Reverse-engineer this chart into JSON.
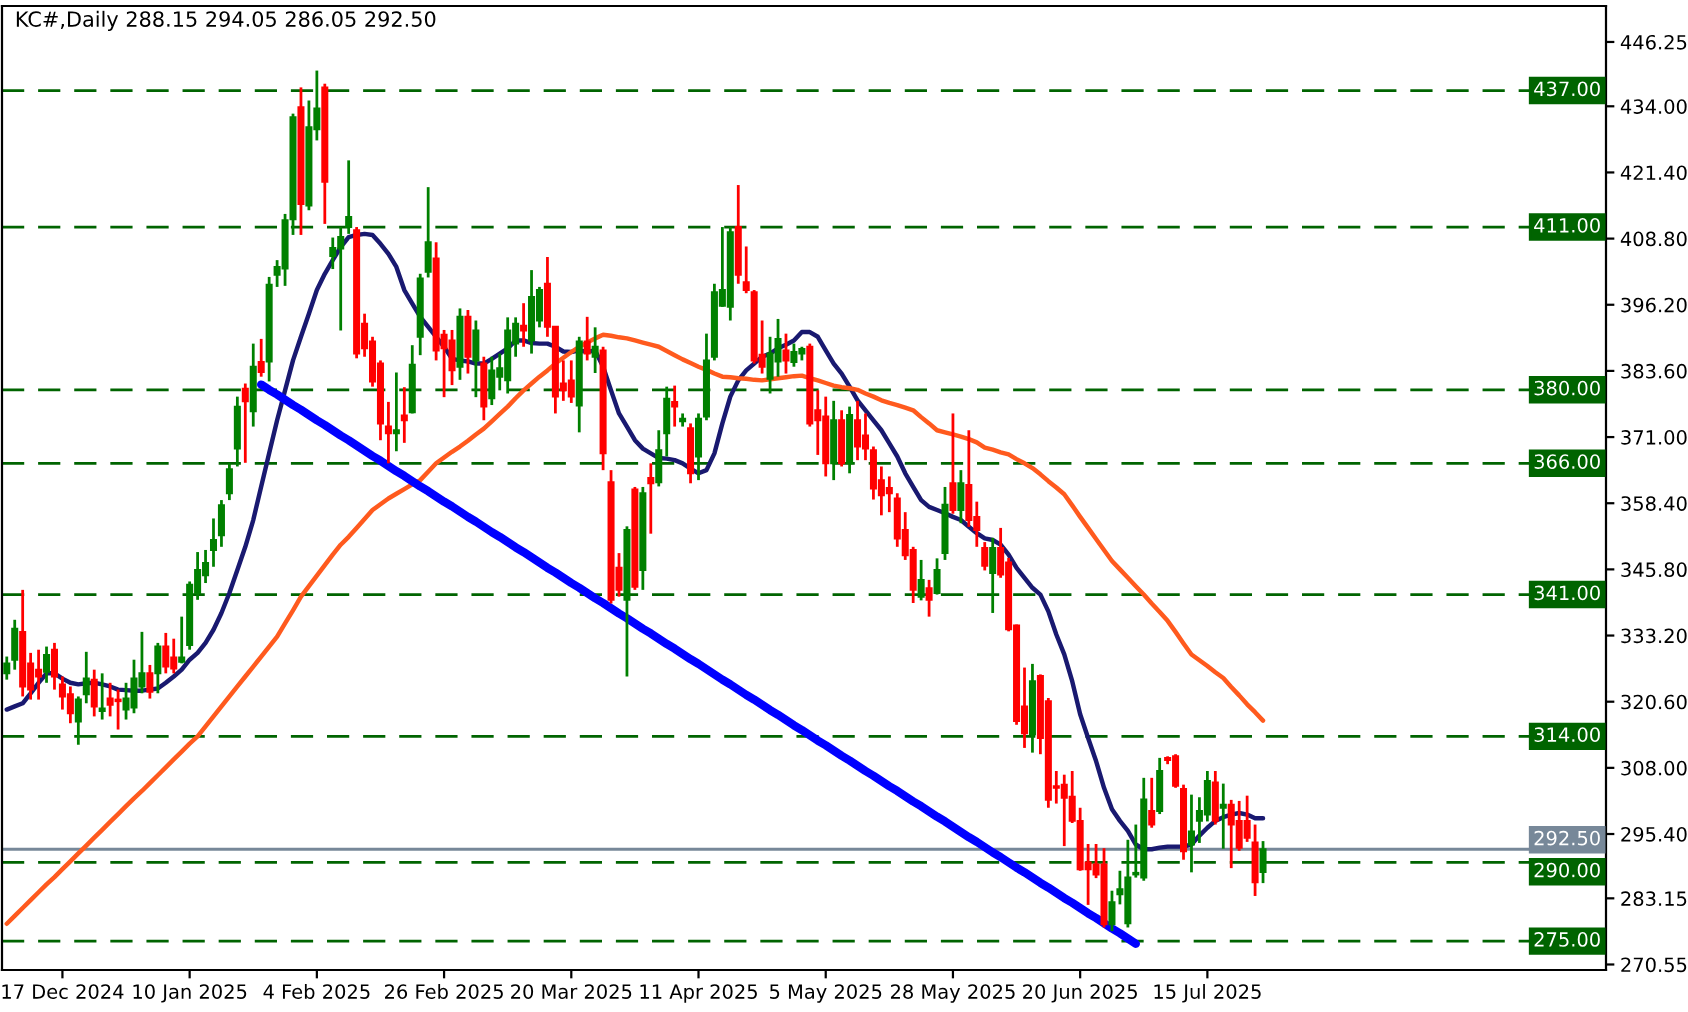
{
  "chart_data": {
    "type": "candlestick",
    "title": "KC#,Daily 288.15 294.05 286.05 292.50",
    "categories": [
      null,
      null,
      null,
      null,
      null,
      null,
      null,
      "17 Dec 2024",
      null,
      null,
      null,
      null,
      null,
      null,
      null,
      null,
      null,
      null,
      null,
      null,
      null,
      null,
      null,
      "10 Jan 2025",
      null,
      null,
      null,
      null,
      null,
      null,
      null,
      null,
      null,
      null,
      null,
      null,
      null,
      null,
      null,
      "4 Feb 2025",
      null,
      null,
      null,
      null,
      null,
      null,
      null,
      null,
      null,
      null,
      null,
      null,
      null,
      null,
      null,
      "26 Feb 2025",
      null,
      null,
      null,
      null,
      null,
      null,
      null,
      null,
      null,
      null,
      null,
      null,
      null,
      null,
      null,
      "20 Mar 2025",
      null,
      null,
      null,
      null,
      null,
      null,
      null,
      null,
      null,
      null,
      null,
      null,
      null,
      null,
      null,
      "11 Apr 2025",
      null,
      null,
      null,
      null,
      null,
      null,
      null,
      null,
      null,
      null,
      null,
      null,
      null,
      null,
      null,
      "5 May 2025",
      null,
      null,
      null,
      null,
      null,
      null,
      null,
      null,
      null,
      null,
      null,
      null,
      null,
      null,
      null,
      "28 May 2025",
      null,
      null,
      null,
      null,
      null,
      null,
      null,
      null,
      null,
      null,
      null,
      null,
      null,
      null,
      null,
      "20 Jun 2025",
      null,
      null,
      null,
      null,
      null,
      null,
      null,
      null,
      null,
      null,
      null,
      null,
      null,
      null,
      null,
      "15 Jul 2025",
      null,
      null,
      null,
      null,
      null,
      null,
      null
    ],
    "ohlc": [
      [
        326.0,
        329.2,
        324.8,
        327.9
      ],
      [
        328.6,
        336.2,
        326.7,
        334.5
      ],
      [
        333.9,
        341.9,
        321.6,
        323.5
      ],
      [
        327.9,
        329.9,
        321.0,
        322.9
      ],
      [
        326.7,
        330.5,
        321.0,
        325.4
      ],
      [
        326.3,
        331.1,
        324.2,
        329.5
      ],
      [
        330.5,
        331.8,
        322.9,
        325.4
      ],
      [
        323.9,
        325.4,
        319.1,
        321.6
      ],
      [
        322.0,
        323.5,
        316.5,
        318.4
      ],
      [
        316.8,
        321.6,
        312.4,
        321.0
      ],
      [
        322.0,
        330.1,
        320.3,
        325.0
      ],
      [
        324.8,
        326.7,
        317.8,
        319.7
      ],
      [
        318.8,
        326.0,
        317.2,
        319.3
      ],
      [
        321.2,
        324.2,
        317.8,
        320.0
      ],
      [
        321.0,
        322.9,
        315.3,
        320.7
      ],
      [
        319.1,
        324.2,
        317.2,
        321.2
      ],
      [
        319.5,
        328.6,
        318.4,
        325.0
      ],
      [
        323.5,
        333.9,
        322.2,
        326.0
      ],
      [
        326.0,
        327.6,
        321.2,
        322.5
      ],
      [
        326.0,
        331.8,
        322.2,
        331.1
      ],
      [
        331.1,
        333.7,
        326.0,
        327.3
      ],
      [
        329.0,
        332.6,
        326.0,
        326.9
      ],
      [
        328.2,
        336.8,
        327.9,
        329.0
      ],
      [
        331.4,
        343.5,
        330.5,
        342.9
      ],
      [
        341.3,
        349.1,
        340.0,
        345.7
      ],
      [
        344.7,
        349.5,
        343.2,
        347.0
      ],
      [
        349.5,
        355.5,
        346.3,
        351.4
      ],
      [
        352.3,
        359.0,
        350.1,
        358.0
      ],
      [
        360.3,
        366.0,
        359.0,
        364.9
      ],
      [
        368.8,
        378.7,
        365.4,
        376.8
      ],
      [
        380.2,
        381.2,
        366.1,
        377.8
      ],
      [
        375.9,
        388.8,
        373.0,
        384.4
      ],
      [
        385.3,
        389.7,
        382.5,
        383.4
      ],
      [
        385.4,
        401.5,
        381.6,
        400.0
      ],
      [
        401.9,
        404.7,
        399.6,
        403.4
      ],
      [
        403.1,
        413.5,
        399.8,
        412.3
      ],
      [
        412.5,
        432.6,
        409.5,
        431.9
      ],
      [
        433.8,
        437.6,
        409.5,
        415.4
      ],
      [
        415.1,
        435.1,
        414.2,
        430.0
      ],
      [
        429.6,
        440.8,
        427.5,
        433.6
      ],
      [
        437.6,
        438.3,
        411.6,
        419.6
      ],
      [
        405.5,
        409.0,
        403.0,
        407.0
      ],
      [
        406.9,
        411.0,
        391.3,
        409.1
      ],
      [
        411.0,
        423.7,
        409.7,
        412.9
      ],
      [
        410.4,
        411.0,
        386.0,
        386.9
      ],
      [
        392.6,
        394.5,
        386.3,
        387.9
      ],
      [
        389.2,
        390.1,
        380.6,
        381.6
      ],
      [
        385.0,
        385.6,
        370.4,
        373.6
      ],
      [
        373.0,
        377.7,
        366.0,
        371.7
      ],
      [
        371.7,
        383.3,
        368.3,
        372.3
      ],
      [
        375.1,
        380.5,
        369.9,
        374.2
      ],
      [
        375.7,
        388.5,
        375.5,
        384.8
      ],
      [
        390.1,
        402.1,
        386.6,
        401.2
      ],
      [
        402.5,
        418.6,
        401.4,
        408.1
      ],
      [
        405.0,
        408.1,
        385.6,
        387.5
      ],
      [
        390.5,
        391.4,
        378.6,
        387.9
      ],
      [
        389.4,
        391.4,
        380.9,
        383.7
      ],
      [
        384.4,
        395.5,
        381.9,
        393.9
      ],
      [
        393.9,
        395.2,
        383.1,
        386.3
      ],
      [
        385.6,
        393.2,
        378.6,
        391.3
      ],
      [
        385.0,
        386.3,
        374.2,
        376.8
      ],
      [
        378.4,
        386.3,
        377.1,
        383.7
      ],
      [
        382.5,
        386.9,
        379.9,
        384.1
      ],
      [
        381.8,
        393.8,
        379.3,
        391.3
      ],
      [
        388.8,
        393.8,
        386.3,
        392.6
      ],
      [
        392.2,
        396.5,
        388.2,
        391.3
      ],
      [
        389.4,
        402.8,
        386.9,
        397.7
      ],
      [
        393.2,
        399.6,
        391.9,
        399.0
      ],
      [
        400.2,
        405.3,
        390.1,
        392.0
      ],
      [
        392.0,
        392.0,
        375.5,
        378.7
      ],
      [
        381.2,
        385.6,
        377.9,
        379.9
      ],
      [
        381.8,
        385.6,
        377.5,
        378.7
      ],
      [
        377.0,
        390.1,
        371.9,
        389.2
      ],
      [
        389.2,
        393.9,
        385.6,
        386.9
      ],
      [
        386.3,
        391.9,
        383.2,
        388.2
      ],
      [
        387.5,
        388.2,
        364.7,
        367.9
      ],
      [
        362.4,
        364.7,
        339.3,
        340.0
      ],
      [
        346.1,
        348.9,
        340.6,
        341.9
      ],
      [
        340.0,
        354.0,
        325.4,
        353.3
      ],
      [
        361.0,
        361.5,
        341.9,
        342.5
      ],
      [
        345.7,
        361.5,
        341.9,
        360.3
      ],
      [
        363.2,
        366.0,
        352.6,
        362.2
      ],
      [
        362.4,
        372.3,
        361.6,
        368.5
      ],
      [
        371.7,
        380.6,
        367.3,
        378.3
      ],
      [
        377.7,
        380.8,
        373.0,
        376.8
      ],
      [
        374.0,
        375.5,
        373.0,
        374.5
      ],
      [
        372.7,
        373.6,
        362.2,
        364.1
      ],
      [
        367.3,
        375.5,
        362.8,
        374.5
      ],
      [
        374.9,
        390.7,
        374.2,
        385.6
      ],
      [
        386.3,
        400.2,
        385.6,
        398.6
      ],
      [
        396.0,
        411.0,
        395.8,
        399.0
      ],
      [
        395.8,
        411.0,
        393.2,
        410.0
      ],
      [
        411.0,
        419.0,
        400.2,
        401.9
      ],
      [
        400.5,
        407.3,
        398.4,
        399.0
      ],
      [
        398.6,
        399.0,
        385.0,
        385.6
      ],
      [
        386.7,
        393.2,
        383.1,
        384.4
      ],
      [
        382.1,
        390.1,
        379.3,
        386.9
      ],
      [
        385.4,
        393.5,
        382.5,
        389.7
      ],
      [
        387.5,
        390.7,
        383.1,
        385.6
      ],
      [
        385.3,
        388.8,
        384.4,
        387.2
      ],
      [
        386.9,
        388.2,
        385.6,
        387.8
      ],
      [
        388.2,
        388.8,
        373.0,
        373.6
      ],
      [
        376.1,
        379.9,
        367.6,
        374.2
      ],
      [
        374.9,
        378.7,
        363.5,
        366.0
      ],
      [
        366.0,
        377.9,
        362.8,
        374.2
      ],
      [
        374.2,
        376.1,
        365.4,
        366.0
      ],
      [
        366.0,
        376.8,
        364.1,
        375.2
      ],
      [
        374.2,
        377.9,
        366.6,
        369.2
      ],
      [
        371.3,
        375.5,
        366.6,
        368.8
      ],
      [
        368.5,
        369.2,
        359.1,
        361.2
      ],
      [
        362.8,
        365.4,
        356.1,
        359.9
      ],
      [
        361.3,
        363.5,
        356.7,
        360.3
      ],
      [
        359.3,
        360.3,
        350.1,
        351.7
      ],
      [
        353.3,
        356.7,
        347.6,
        348.5
      ],
      [
        349.5,
        350.1,
        339.4,
        341.9
      ],
      [
        340.6,
        347.6,
        339.9,
        343.8
      ],
      [
        342.2,
        343.8,
        336.8,
        340.0
      ],
      [
        341.3,
        347.9,
        341.0,
        345.7
      ],
      [
        348.9,
        361.5,
        347.6,
        358.1
      ],
      [
        362.2,
        375.5,
        356.4,
        357.1
      ],
      [
        357.1,
        364.7,
        354.6,
        362.2
      ],
      [
        361.9,
        372.3,
        353.9,
        355.2
      ],
      [
        355.8,
        358.7,
        350.1,
        353.3
      ],
      [
        349.9,
        351.0,
        345.6,
        346.5
      ],
      [
        345.1,
        351.8,
        337.5,
        349.9
      ],
      [
        349.9,
        353.7,
        344.2,
        344.8
      ],
      [
        347.1,
        348.0,
        334.0,
        334.4
      ],
      [
        335.1,
        335.3,
        316.2,
        316.9
      ],
      [
        319.7,
        327.1,
        311.8,
        314.6
      ],
      [
        314.4,
        327.8,
        310.9,
        324.5
      ],
      [
        325.5,
        325.8,
        310.6,
        313.7
      ],
      [
        320.7,
        321.3,
        300.4,
        301.9
      ],
      [
        304.5,
        307.4,
        301.2,
        304.2
      ],
      [
        304.8,
        306.7,
        293.1,
        302.3
      ],
      [
        302.5,
        307.4,
        297.5,
        297.9
      ],
      [
        297.9,
        300.4,
        288.4,
        288.7
      ],
      [
        290.0,
        293.5,
        281.9,
        288.7
      ],
      [
        289.6,
        293.5,
        287.0,
        287.7
      ],
      [
        289.6,
        292.7,
        277.6,
        278.2
      ],
      [
        278.2,
        284.6,
        276.9,
        282.4
      ],
      [
        283.9,
        288.4,
        282.0,
        284.9
      ],
      [
        278.4,
        294.3,
        277.6,
        287.1
      ],
      [
        287.7,
        297.2,
        287.1,
        288.0
      ],
      [
        287.1,
        306.1,
        286.5,
        302.0
      ],
      [
        299.8,
        306.1,
        296.6,
        297.2
      ],
      [
        299.8,
        309.9,
        299.2,
        307.4
      ],
      [
        309.9,
        310.2,
        308.7,
        309.5
      ],
      [
        310.2,
        310.6,
        304.2,
        304.6
      ],
      [
        304.0,
        304.8,
        290.5,
        292.1
      ],
      [
        293.4,
        302.9,
        288.1,
        295.9
      ],
      [
        297.9,
        302.4,
        293.7,
        299.8
      ],
      [
        299.1,
        307.4,
        297.8,
        305.5
      ],
      [
        305.2,
        307.4,
        297.2,
        297.9
      ],
      [
        300.4,
        305.0,
        292.6,
        301.0
      ],
      [
        301.0,
        301.9,
        288.9,
        297.2
      ],
      [
        297.9,
        301.7,
        292.2,
        292.8
      ],
      [
        297.9,
        302.7,
        293.9,
        294.7
      ],
      [
        293.8,
        297.2,
        283.6,
        286.2
      ],
      [
        288.15,
        294.05,
        286.05,
        292.5
      ]
    ],
    "colors": [
      "#008000",
      "#008000",
      "#ff0000",
      "#ff0000",
      "#ff0000",
      "#008000",
      "#ff0000",
      "#ff0000",
      "#ff0000",
      "#008000",
      "#008000",
      "#ff0000",
      "#008000",
      "#ff0000",
      "#ff0000",
      "#008000",
      "#008000",
      "#008000",
      "#ff0000",
      "#008000",
      "#ff0000",
      "#ff0000",
      "#008000",
      "#008000",
      "#008000",
      "#008000",
      "#008000",
      "#008000",
      "#008000",
      "#008000",
      "#ff0000",
      "#008000",
      "#ff0000",
      "#008000",
      "#008000",
      "#008000",
      "#008000",
      "#ff0000",
      "#008000",
      "#008000",
      "#ff0000",
      "#008000",
      "#008000",
      "#008000",
      "#ff0000",
      "#ff0000",
      "#ff0000",
      "#ff0000",
      "#ff0000",
      "#008000",
      "#ff0000",
      "#008000",
      "#008000",
      "#008000",
      "#ff0000",
      "#ff0000",
      "#ff0000",
      "#008000",
      "#ff0000",
      "#008000",
      "#ff0000",
      "#008000",
      "#008000",
      "#008000",
      "#008000",
      "#ff0000",
      "#008000",
      "#008000",
      "#ff0000",
      "#ff0000",
      "#ff0000",
      "#ff0000",
      "#008000",
      "#ff0000",
      "#008000",
      "#ff0000",
      "#ff0000",
      "#ff0000",
      "#008000",
      "#ff0000",
      "#008000",
      "#ff0000",
      "#008000",
      "#008000",
      "#ff0000",
      "#008000",
      "#ff0000",
      "#008000",
      "#008000",
      "#008000",
      "#008000",
      "#008000",
      "#ff0000",
      "#ff0000",
      "#ff0000",
      "#ff0000",
      "#008000",
      "#008000",
      "#ff0000",
      "#008000",
      "#008000",
      "#ff0000",
      "#ff0000",
      "#ff0000",
      "#008000",
      "#ff0000",
      "#008000",
      "#ff0000",
      "#ff0000",
      "#ff0000",
      "#ff0000",
      "#ff0000",
      "#ff0000",
      "#ff0000",
      "#ff0000",
      "#008000",
      "#ff0000",
      "#008000",
      "#008000",
      "#ff0000",
      "#008000",
      "#ff0000",
      "#ff0000",
      "#ff0000",
      "#008000",
      "#ff0000",
      "#ff0000",
      "#ff0000",
      "#ff0000",
      "#008000",
      "#ff0000",
      "#ff0000",
      "#ff0000",
      "#ff0000",
      "#ff0000",
      "#ff0000",
      "#ff0000",
      "#ff0000",
      "#ff0000",
      "#008000",
      "#008000",
      "#008000",
      "#008000",
      "#008000",
      "#ff0000",
      "#008000",
      "#ff0000",
      "#ff0000",
      "#ff0000",
      "#008000",
      "#008000",
      "#008000",
      "#ff0000",
      "#008000",
      "#ff0000",
      "#ff0000",
      "#ff0000",
      "#ff0000",
      "#008000"
    ],
    "series": [
      {
        "type": "line",
        "color": "#191970",
        "values": [
          319.1,
          319.7,
          320.3,
          322.2,
          324.2,
          326.0,
          326.0,
          325.0,
          324.2,
          323.9,
          324.1,
          324.2,
          323.9,
          323.5,
          322.9,
          322.8,
          322.7,
          322.7,
          322.9,
          323.1,
          324.2,
          325.4,
          326.7,
          328.6,
          329.9,
          331.8,
          334.3,
          337.5,
          341.3,
          345.7,
          350.1,
          355.2,
          361.6,
          367.9,
          374.2,
          379.9,
          385.6,
          390.1,
          394.5,
          399.0,
          402.1,
          404.7,
          407.2,
          409.1,
          409.5,
          409.7,
          409.5,
          407.8,
          405.9,
          403.4,
          399.0,
          396.4,
          393.9,
          392.0,
          390.1,
          388.2,
          385.9,
          385.6,
          385.4,
          385.0,
          385.0,
          385.9,
          386.9,
          387.9,
          389.4,
          389.4,
          388.9,
          388.8,
          388.8,
          388.2,
          387.3,
          387.2,
          387.5,
          387.2,
          387.5,
          384.4,
          379.9,
          375.5,
          373.0,
          370.4,
          368.8,
          367.9,
          367.0,
          366.9,
          366.6,
          366.0,
          365.0,
          364.1,
          364.7,
          367.9,
          373.6,
          378.7,
          381.8,
          383.7,
          385.0,
          386.3,
          386.9,
          387.9,
          388.6,
          389.4,
          391.0,
          391.0,
          390.1,
          387.5,
          385.0,
          383.1,
          380.6,
          378.0,
          376.1,
          374.2,
          372.3,
          369.8,
          367.3,
          364.1,
          361.5,
          359.0,
          357.7,
          357.1,
          356.5,
          355.8,
          355.2,
          353.9,
          352.7,
          351.7,
          351.4,
          350.5,
          348.6,
          346.1,
          344.2,
          342.3,
          341.0,
          337.8,
          333.4,
          329.6,
          324.5,
          318.2,
          313.7,
          309.3,
          304.2,
          300.1,
          297.9,
          296.0,
          293.4,
          292.5,
          292.5,
          292.8,
          293.0,
          293.0,
          293.0,
          293.4,
          295.1,
          296.6,
          297.9,
          298.6,
          299.1,
          299.4,
          299.1,
          298.4,
          298.4
        ]
      },
      {
        "type": "line",
        "color": "#ff5a1e",
        "values": [
          278.3,
          279.8,
          281.3,
          282.8,
          284.3,
          285.8,
          287.2,
          288.7,
          290.2,
          291.7,
          293.2,
          294.7,
          296.2,
          297.7,
          299.2,
          300.7,
          302.2,
          303.6,
          305.1,
          306.6,
          308.1,
          309.6,
          311.1,
          312.6,
          314.0,
          315.9,
          317.8,
          319.7,
          321.6,
          323.5,
          325.4,
          327.3,
          329.2,
          331.1,
          333.0,
          335.5,
          338.0,
          340.6,
          342.6,
          344.6,
          346.6,
          348.6,
          350.5,
          352.0,
          353.7,
          355.4,
          357.1,
          358.2,
          359.3,
          360.2,
          361.1,
          362.0,
          362.8,
          364.4,
          366.0,
          367.1,
          368.2,
          369.2,
          370.3,
          371.5,
          372.6,
          374.0,
          375.4,
          376.8,
          378.4,
          379.9,
          381.2,
          382.5,
          383.7,
          385.0,
          386.1,
          387.2,
          388.2,
          389.0,
          389.8,
          390.5,
          390.3,
          390.0,
          389.8,
          389.4,
          389.0,
          388.6,
          388.2,
          387.4,
          386.6,
          385.8,
          385.1,
          384.4,
          383.8,
          383.1,
          382.5,
          382.4,
          382.2,
          382.1,
          381.9,
          381.8,
          382.0,
          382.2,
          382.4,
          382.6,
          382.7,
          382.2,
          381.8,
          381.3,
          380.8,
          380.5,
          380.3,
          380.0,
          379.3,
          378.7,
          378.0,
          377.5,
          377.1,
          376.6,
          376.1,
          374.8,
          373.6,
          372.3,
          371.9,
          371.5,
          371.1,
          370.6,
          370.0,
          369.0,
          368.6,
          368.1,
          367.7,
          366.8,
          366.0,
          365.1,
          363.9,
          362.6,
          361.4,
          360.1,
          358.0,
          355.8,
          353.7,
          351.6,
          349.5,
          347.4,
          345.8,
          344.2,
          342.6,
          341.0,
          339.3,
          337.7,
          336.0,
          333.9,
          331.7,
          329.6,
          328.5,
          327.4,
          326.2,
          325.1,
          323.4,
          321.8,
          320.1,
          318.6,
          317.0
        ]
      },
      {
        "type": "line",
        "color": "#0000ff",
        "values": [
          null,
          null,
          null,
          null,
          null,
          null,
          null,
          null,
          null,
          null,
          null,
          null,
          null,
          null,
          null,
          null,
          null,
          null,
          null,
          null,
          null,
          null,
          null,
          null,
          null,
          null,
          null,
          null,
          null,
          null,
          null,
          null,
          381.0,
          380.0,
          379.1,
          378.1,
          377.1,
          376.2,
          375.2,
          374.2,
          373.3,
          372.3,
          371.3,
          370.4,
          369.4,
          368.4,
          367.4,
          366.5,
          365.5,
          364.5,
          363.6,
          362.6,
          361.6,
          360.7,
          359.7,
          358.7,
          357.8,
          356.8,
          355.8,
          354.9,
          353.9,
          352.9,
          352.0,
          351.0,
          350.0,
          349.1,
          348.1,
          347.1,
          346.1,
          345.2,
          344.2,
          343.2,
          342.3,
          341.3,
          340.3,
          339.4,
          338.4,
          337.4,
          336.5,
          335.5,
          334.5,
          333.6,
          332.6,
          331.6,
          330.7,
          329.7,
          328.7,
          327.8,
          326.8,
          325.8,
          324.8,
          323.9,
          322.9,
          321.9,
          321.0,
          320.0,
          319.0,
          318.1,
          317.1,
          316.1,
          315.2,
          314.2,
          313.2,
          312.3,
          311.3,
          310.3,
          309.4,
          308.4,
          307.4,
          306.5,
          305.5,
          304.5,
          303.6,
          302.6,
          301.6,
          300.7,
          299.7,
          298.7,
          297.8,
          296.8,
          295.8,
          294.8,
          293.9,
          292.9,
          291.9,
          291.0,
          290.0,
          289.0,
          288.1,
          287.1,
          286.1,
          285.2,
          284.2,
          283.2,
          282.3,
          281.3,
          280.3,
          279.4,
          278.4,
          277.4,
          276.5,
          275.5,
          274.5,
          null,
          null,
          null,
          null,
          null,
          null,
          null,
          null,
          null,
          null,
          null,
          null,
          null,
          null,
          null,
          null
        ]
      }
    ],
    "ylim": [
      269.5,
      453.1
    ],
    "yticks": [
      {
        "value": 446.25,
        "label": "446.25"
      },
      {
        "value": 434.0,
        "label": "434.00"
      },
      {
        "value": 421.4,
        "label": "421.40"
      },
      {
        "value": 408.8,
        "label": "408.80"
      },
      {
        "value": 396.2,
        "label": "396.20"
      },
      {
        "value": 383.6,
        "label": "383.60"
      },
      {
        "value": 371.0,
        "label": "371.00"
      },
      {
        "value": 358.4,
        "label": "358.40"
      },
      {
        "value": 345.8,
        "label": "345.80"
      },
      {
        "value": 333.2,
        "label": "333.20"
      },
      {
        "value": 320.6,
        "label": "320.60"
      },
      {
        "value": 308.0,
        "label": "308.00"
      },
      {
        "value": 295.4,
        "label": "295.40"
      },
      {
        "value": 283.15,
        "label": "283.15"
      },
      {
        "value": 270.55,
        "label": "270.55"
      }
    ],
    "ref_lines": [
      {
        "axis": "y",
        "value": 437,
        "label": "437.00",
        "color": "#006400",
        "line_style": "dashed"
      },
      {
        "axis": "y",
        "value": 411,
        "label": "411.00",
        "color": "#006400",
        "line_style": "dashed"
      },
      {
        "axis": "y",
        "value": 380,
        "label": "380.00",
        "color": "#006400",
        "line_style": "dashed"
      },
      {
        "axis": "y",
        "value": 366,
        "label": "366.00",
        "color": "#006400",
        "line_style": "dashed"
      },
      {
        "axis": "y",
        "value": 341,
        "label": "341.00",
        "color": "#006400",
        "line_style": "dashed"
      },
      {
        "axis": "y",
        "value": 314,
        "label": "314.00",
        "color": "#006400",
        "line_style": "dashed"
      },
      {
        "axis": "y",
        "value": 292.5,
        "label": "292.50",
        "color": "#778899",
        "line_style": "solid"
      },
      {
        "axis": "y",
        "value": 290,
        "label": "290.00",
        "color": "#006400",
        "line_style": "dashed"
      },
      {
        "axis": "y",
        "value": 275,
        "label": "275.00",
        "color": "#006400",
        "line_style": "dashed"
      }
    ]
  }
}
